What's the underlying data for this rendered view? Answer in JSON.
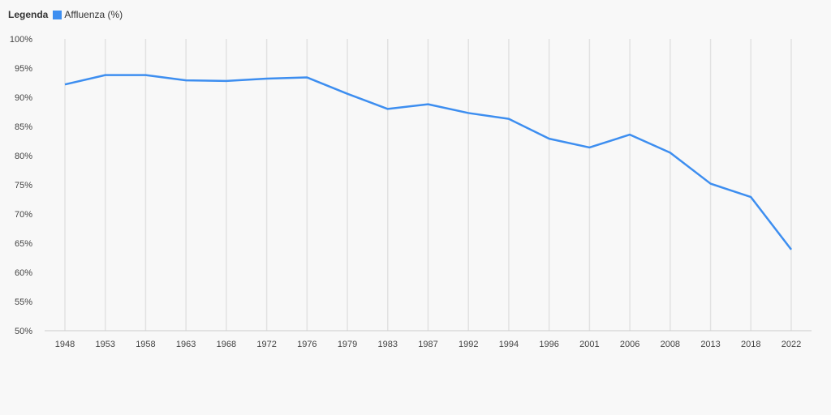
{
  "legend": {
    "title": "Legenda",
    "series_label": "Affluenza (%)"
  },
  "chart_data": {
    "type": "line",
    "title": "",
    "xlabel": "",
    "ylabel": "",
    "ylim": [
      50,
      100
    ],
    "yticks": [
      "50%",
      "55%",
      "60%",
      "65%",
      "70%",
      "75%",
      "80%",
      "85%",
      "90%",
      "95%",
      "100%"
    ],
    "grid": "vertical",
    "legend_position": "top-left",
    "categories": [
      "1948",
      "1953",
      "1958",
      "1963",
      "1968",
      "1972",
      "1976",
      "1979",
      "1983",
      "1987",
      "1992",
      "1994",
      "1996",
      "2001",
      "2006",
      "2008",
      "2013",
      "2018",
      "2022"
    ],
    "series": [
      {
        "name": "Affluenza (%)",
        "color": "#3d8ef0",
        "values": [
          92.2,
          93.8,
          93.8,
          92.9,
          92.8,
          93.2,
          93.4,
          90.6,
          88.0,
          88.8,
          87.3,
          86.3,
          82.9,
          81.4,
          83.6,
          80.5,
          75.2,
          72.9,
          63.9
        ]
      }
    ]
  }
}
